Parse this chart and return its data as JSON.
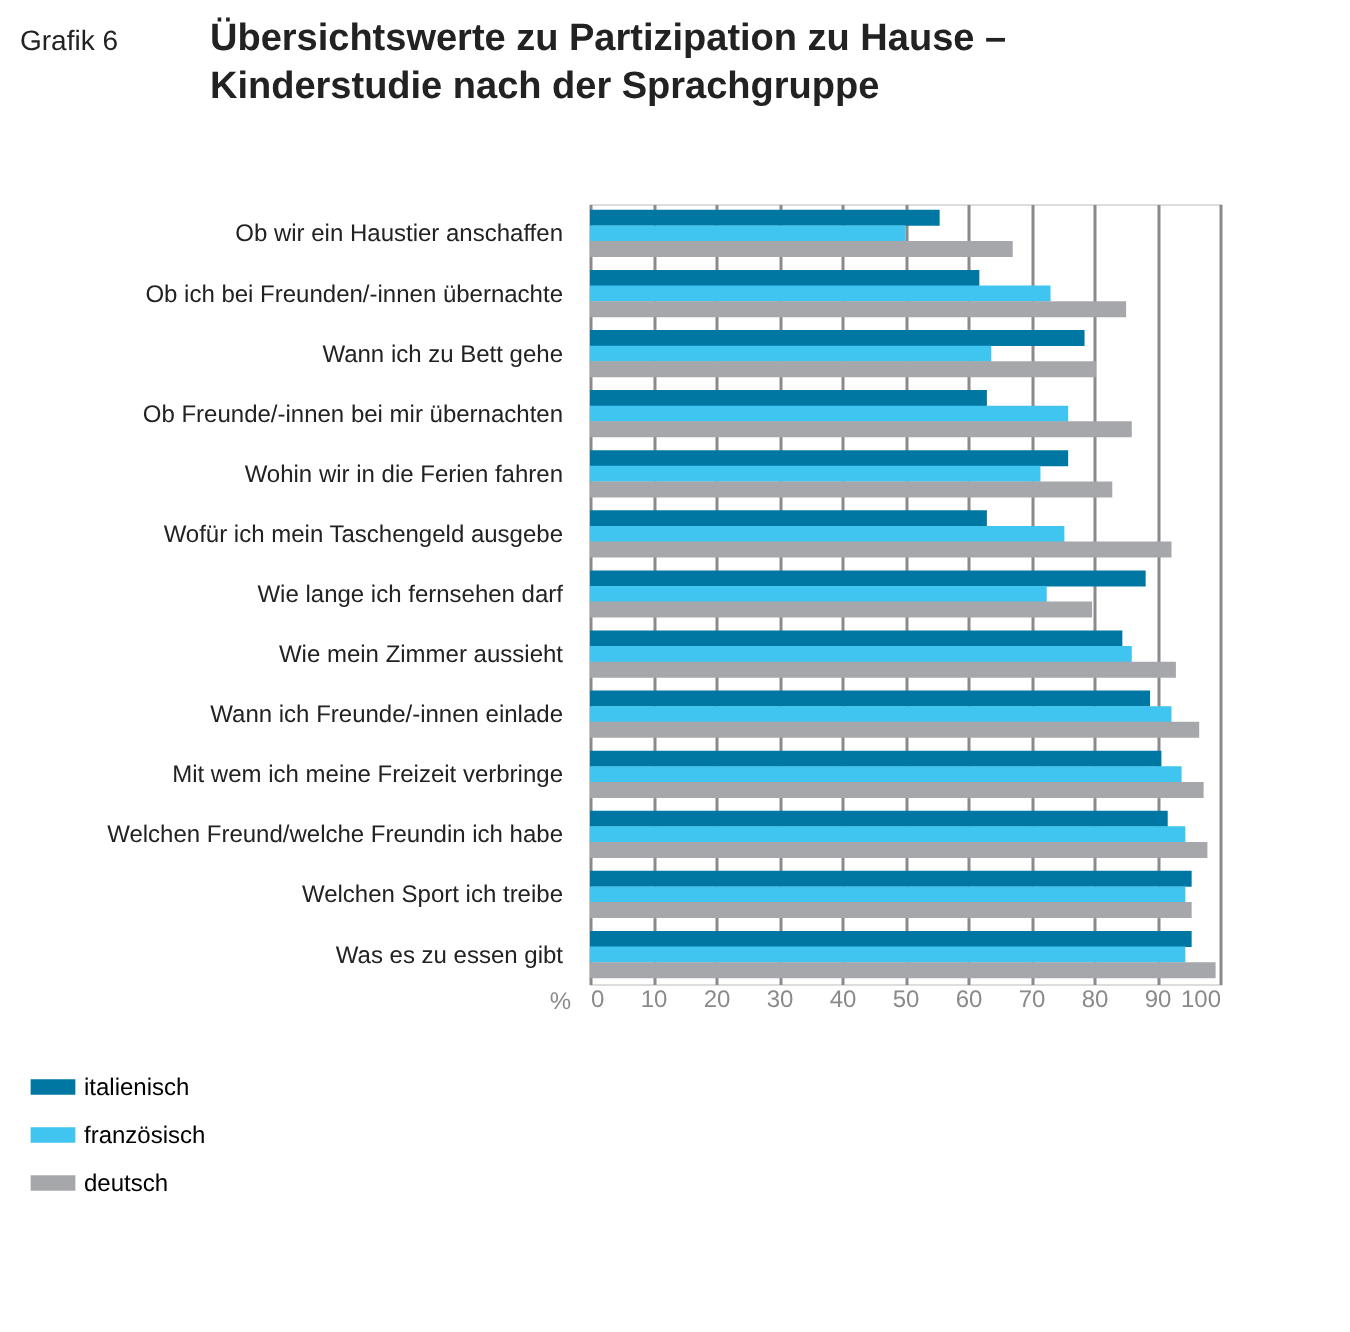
{
  "chart_data": {
    "type": "bar",
    "orientation": "horizontal",
    "title": "Übersichtswerte zu Partizipation zu Hause – Kinderstudie nach der Sprachgruppe",
    "xlabel": "%",
    "annotations": [
      "Grafik 6"
    ],
    "categories": [
      "Ob wir ein Haustier anschaffen",
      "Ob ich bei Freunden/-innen übernachte",
      "Wann ich zu Bett gehe",
      "Ob Freunde/-innen bei mir übernachten",
      "Wohin wir in die Ferien fahren",
      "Wofür ich mein Taschengeld ausgebe",
      "Wie lange ich fernsehen darf",
      "Wie mein Zimmer aussieht",
      "Wann ich Freunde/-innen einlade",
      "Mit wem ich meine Freizeit verbringe",
      "Welchen Freund/welche Freundin ich habe",
      "Welchen Sport ich treibe",
      "Was es zu essen gibt"
    ],
    "series": [
      {
        "name": "italienisch",
        "color": "#0077a3",
        "values": [
          55.5,
          61.8,
          78.5,
          63,
          75.9,
          63,
          88.2,
          84.5,
          88.9,
          90.7,
          91.7,
          95.5,
          95.5
        ]
      },
      {
        "name": "französisch",
        "color": "#40c4f0",
        "values": [
          50.1,
          73.1,
          63.7,
          75.9,
          71.5,
          75.3,
          72.5,
          86,
          92.3,
          93.9,
          94.5,
          94.5,
          94.5
        ]
      },
      {
        "name": "deutsch",
        "color": "#a6a7aa",
        "values": [
          67.1,
          85.1,
          80.3,
          86,
          82.9,
          92.3,
          79.7,
          93,
          96.7,
          97.4,
          98,
          95.5,
          99.3
        ]
      }
    ],
    "xlim": [
      0,
      100
    ],
    "xticks": [
      0,
      10,
      20,
      30,
      40,
      50,
      60,
      70,
      80,
      90,
      100
    ],
    "grid": "x",
    "legend": "bottom left"
  }
}
